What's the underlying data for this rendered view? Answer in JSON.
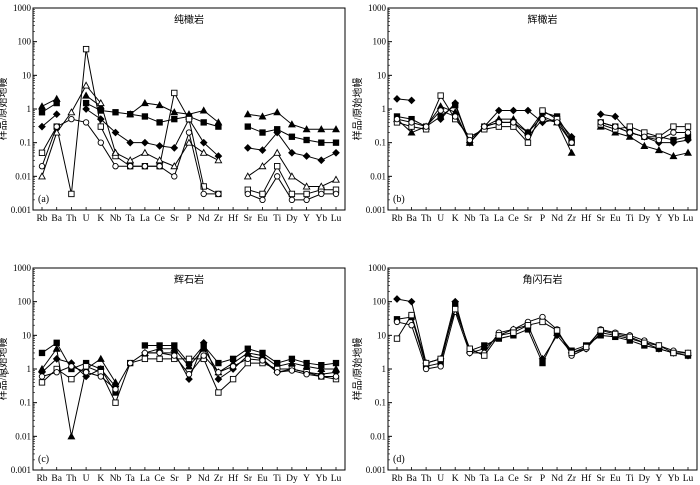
{
  "figure": {
    "y_axis_title": "样品/原始地幔",
    "y_ticks": [
      "1000",
      "100",
      "10",
      "1",
      "0.1",
      "0.01",
      "0.001"
    ]
  },
  "chart_data": [
    {
      "type": "line",
      "panel_letter": "(a)",
      "title": "纯橄岩",
      "ylabel": "样品/原始地幔",
      "yscale": "log",
      "ylim": [
        0.001,
        1000
      ],
      "categories": [
        "Rb",
        "Ba",
        "Th",
        "U",
        "K",
        "Nb",
        "Ta",
        "La",
        "Ce",
        "Sr",
        "P",
        "Nd",
        "Zr",
        "Hf",
        "Sr",
        "Eu",
        "Ti",
        "Dy",
        "Y",
        "Yb",
        "Lu"
      ],
      "x_tick_labels": [
        "Rb",
        "Ba",
        "Th",
        "U",
        "K",
        "Nb",
        "Ta",
        "La",
        "Ce",
        "Sr",
        "P",
        "Nd",
        "Zr",
        "Hf",
        "Sr",
        "Eu",
        "Ti",
        "Dy",
        "Y",
        "Yb",
        "Lu"
      ],
      "series": [
        {
          "name": "s1",
          "marker": "triangle-filled",
          "values": [
            1.2,
            2.0,
            null,
            2.5,
            1.2,
            null,
            0.7,
            1.5,
            1.3,
            0.8,
            0.7,
            0.9,
            0.4,
            null,
            0.7,
            0.6,
            0.8,
            0.35,
            0.25,
            0.25,
            0.25
          ]
        },
        {
          "name": "s2",
          "marker": "square-filled",
          "values": [
            0.8,
            1.5,
            null,
            1.5,
            0.9,
            0.8,
            0.7,
            0.6,
            0.4,
            0.5,
            0.6,
            0.4,
            0.3,
            null,
            0.3,
            0.2,
            0.25,
            0.15,
            0.12,
            0.1,
            0.1
          ]
        },
        {
          "name": "s3",
          "marker": "diamond-filled",
          "values": [
            0.3,
            0.7,
            null,
            1.0,
            0.5,
            0.2,
            0.1,
            0.1,
            0.08,
            0.07,
            0.5,
            0.1,
            0.04,
            null,
            0.07,
            0.06,
            0.2,
            0.05,
            0.04,
            0.03,
            0.05
          ]
        },
        {
          "name": "s4",
          "marker": "square-open",
          "values": [
            0.05,
            0.3,
            0.003,
            60,
            0.3,
            0.04,
            0.02,
            0.02,
            0.02,
            3.0,
            0.5,
            0.005,
            0.003,
            null,
            0.004,
            0.003,
            0.02,
            0.003,
            0.003,
            0.004,
            0.004
          ]
        },
        {
          "name": "s5",
          "marker": "triangle-open",
          "values": [
            0.01,
            0.2,
            0.8,
            5.0,
            1.5,
            0.05,
            0.03,
            0.05,
            0.03,
            0.02,
            0.1,
            0.05,
            0.03,
            null,
            0.01,
            0.02,
            0.05,
            0.01,
            0.005,
            0.005,
            0.008
          ]
        },
        {
          "name": "s6",
          "marker": "circle-open",
          "values": [
            0.02,
            0.3,
            0.5,
            0.4,
            0.1,
            0.02,
            0.02,
            0.02,
            0.02,
            0.01,
            0.2,
            0.003,
            0.003,
            null,
            0.003,
            0.002,
            0.01,
            0.002,
            0.002,
            0.003,
            0.003
          ]
        }
      ]
    },
    {
      "type": "line",
      "panel_letter": "(b)",
      "title": "辉橄岩",
      "ylabel": "样品/原始地幔",
      "yscale": "log",
      "ylim": [
        0.001,
        1000
      ],
      "categories": [
        "Rb",
        "Ba",
        "Th",
        "U",
        "K",
        "Nb",
        "Ta",
        "La",
        "Ce",
        "Sr",
        "P",
        "Nd",
        "Zr",
        "Hf",
        "Sr",
        "Eu",
        "Ti",
        "Dy",
        "Y",
        "Yb",
        "Lu"
      ],
      "x_tick_labels": [
        "Rb",
        "Ba",
        "Th",
        "U",
        "K",
        "Nb",
        "Ta",
        "La",
        "Ce",
        "Sr",
        "P",
        "Nd",
        "Zr",
        "Hf",
        "Sr",
        "Eu",
        "Ti",
        "Dy",
        "Y",
        "Yb",
        "Lu"
      ],
      "series": [
        {
          "name": "s1",
          "marker": "diamond-filled",
          "values": [
            2.0,
            1.8,
            null,
            0.5,
            1.5,
            0.1,
            0.3,
            0.9,
            0.9,
            0.9,
            0.4,
            0.5,
            0.15,
            null,
            0.7,
            0.6,
            0.2,
            0.15,
            0.1,
            0.1,
            0.12
          ]
        },
        {
          "name": "s2",
          "marker": "square-filled",
          "values": [
            0.6,
            0.5,
            0.3,
            0.6,
            1.3,
            0.1,
            0.3,
            0.4,
            0.4,
            0.2,
            0.8,
            0.6,
            0.12,
            null,
            0.4,
            0.3,
            0.2,
            0.15,
            0.15,
            0.12,
            0.15
          ]
        },
        {
          "name": "s3",
          "marker": "triangle-filled",
          "values": [
            0.5,
            0.2,
            0.3,
            1.2,
            0.8,
            0.1,
            0.3,
            0.5,
            0.5,
            0.2,
            0.6,
            0.4,
            0.05,
            null,
            0.3,
            0.2,
            0.15,
            0.08,
            0.06,
            0.04,
            0.05
          ]
        },
        {
          "name": "s4",
          "marker": "square-open",
          "values": [
            0.4,
            0.3,
            0.25,
            2.5,
            0.5,
            0.15,
            0.25,
            0.3,
            0.3,
            0.1,
            0.9,
            0.5,
            0.1,
            null,
            0.35,
            0.25,
            0.3,
            0.2,
            0.15,
            0.3,
            0.3
          ]
        },
        {
          "name": "s5",
          "marker": "circle-open",
          "values": [
            0.5,
            0.4,
            0.3,
            0.9,
            0.6,
            0.12,
            0.3,
            0.4,
            0.4,
            0.15,
            0.5,
            0.4,
            0.1,
            null,
            0.4,
            0.3,
            0.2,
            0.15,
            0.12,
            0.2,
            0.2
          ]
        }
      ]
    },
    {
      "type": "line",
      "panel_letter": "(c)",
      "title": "辉石岩",
      "ylabel": "样品/原始地幔",
      "yscale": "log",
      "ylim": [
        0.001,
        1000
      ],
      "side_marker": "△",
      "categories": [
        "Rb",
        "Ba",
        "Th",
        "U",
        "K",
        "Nb",
        "Ta",
        "La",
        "Ce",
        "Sr",
        "P",
        "Nd",
        "Zr",
        "Hf",
        "Sr",
        "Eu",
        "Ti",
        "Dy",
        "Y",
        "Yb",
        "Lu"
      ],
      "x_tick_labels": [
        "Rb",
        "Ba",
        "Th",
        "U",
        "K",
        "Nb",
        "Ta",
        "La",
        "Ce",
        "Sr",
        "P",
        "Nd",
        "Zr",
        "Hf",
        "Sr",
        "Eu",
        "Ti",
        "Dy",
        "Y",
        "Yb",
        "Lu"
      ],
      "series": [
        {
          "name": "s1",
          "marker": "square-filled",
          "values": [
            3.0,
            6.0,
            1.0,
            1.5,
            1.0,
            0.2,
            null,
            5.0,
            5.0,
            5.0,
            1.5,
            5.0,
            1.5,
            2.0,
            4.0,
            3.0,
            1.5,
            2.0,
            1.5,
            1.3,
            1.5
          ]
        },
        {
          "name": "s2",
          "marker": "triangle-filled",
          "values": [
            1.0,
            4.0,
            0.01,
            1.0,
            2.0,
            0.4,
            null,
            3.0,
            4.0,
            4.0,
            1.2,
            4.0,
            0.8,
            1.5,
            3.0,
            2.5,
            1.2,
            1.5,
            1.2,
            1.0,
            1.0
          ]
        },
        {
          "name": "s3",
          "marker": "diamond-filled",
          "values": [
            0.8,
            2.0,
            1.5,
            0.6,
            1.0,
            0.3,
            null,
            3.0,
            3.0,
            3.0,
            0.5,
            6.0,
            0.5,
            1.0,
            2.5,
            2.0,
            0.8,
            1.0,
            0.8,
            0.7,
            0.8
          ]
        },
        {
          "name": "s4",
          "marker": "square-open",
          "values": [
            0.4,
            1.0,
            0.5,
            1.2,
            0.8,
            0.1,
            1.5,
            2.0,
            2.0,
            2.0,
            2.0,
            2.0,
            0.2,
            0.5,
            1.5,
            1.5,
            1.0,
            1.0,
            0.8,
            0.6,
            0.5
          ]
        },
        {
          "name": "s5",
          "marker": "circle-open",
          "values": [
            0.6,
            0.8,
            1.2,
            0.8,
            0.6,
            0.25,
            1.5,
            3.0,
            3.0,
            2.5,
            0.7,
            2.5,
            0.8,
            1.2,
            2.0,
            1.8,
            0.8,
            0.9,
            0.7,
            0.6,
            0.6
          ]
        }
      ]
    },
    {
      "type": "line",
      "panel_letter": "(d)",
      "title": "角闪石岩",
      "ylabel": "样品/原始地幔",
      "yscale": "log",
      "ylim": [
        0.001,
        1000
      ],
      "categories": [
        "Rb",
        "Ba",
        "Th",
        "U",
        "K",
        "Nb",
        "Ta",
        "La",
        "Ce",
        "Sr",
        "P",
        "Nd",
        "Zr",
        "Hf",
        "Sr",
        "Eu",
        "Ti",
        "Dy",
        "Y",
        "Yb",
        "Lu"
      ],
      "x_tick_labels": [
        "Rb",
        "Ba",
        "Th",
        "U",
        "K",
        "Nb",
        "Ta",
        "La",
        "Ce",
        "Sr",
        "P",
        "Nd",
        "Zr",
        "Hf",
        "Sr",
        "Eu",
        "Ti",
        "Dy",
        "Y",
        "Yb",
        "Lu"
      ],
      "series": [
        {
          "name": "s1",
          "marker": "diamond-filled",
          "values": [
            120,
            100,
            1.5,
            2.0,
            100,
            3.0,
            4.0,
            10,
            15,
            20,
            2.0,
            10,
            3.0,
            4.0,
            12,
            10,
            8,
            6,
            4,
            3,
            2.5
          ]
        },
        {
          "name": "s2",
          "marker": "square-filled",
          "values": [
            30,
            35,
            1.2,
            1.5,
            80,
            3.5,
            5.0,
            8,
            10,
            15,
            1.5,
            12,
            3.5,
            5.0,
            10,
            9,
            7,
            5,
            4,
            3,
            2.5
          ]
        },
        {
          "name": "s3",
          "marker": "circle-open",
          "values": [
            25,
            20,
            1.0,
            1.2,
            50,
            3.0,
            3.0,
            12,
            15,
            25,
            35,
            15,
            2.5,
            4.0,
            15,
            12,
            10,
            7,
            5,
            3.5,
            3.0
          ]
        },
        {
          "name": "s4",
          "marker": "square-open",
          "values": [
            8,
            40,
            1.5,
            2.0,
            60,
            4.0,
            2.5,
            10,
            12,
            20,
            25,
            14,
            3.0,
            4.5,
            14,
            11,
            9,
            6,
            5,
            3.0,
            3.0
          ]
        }
      ]
    }
  ]
}
